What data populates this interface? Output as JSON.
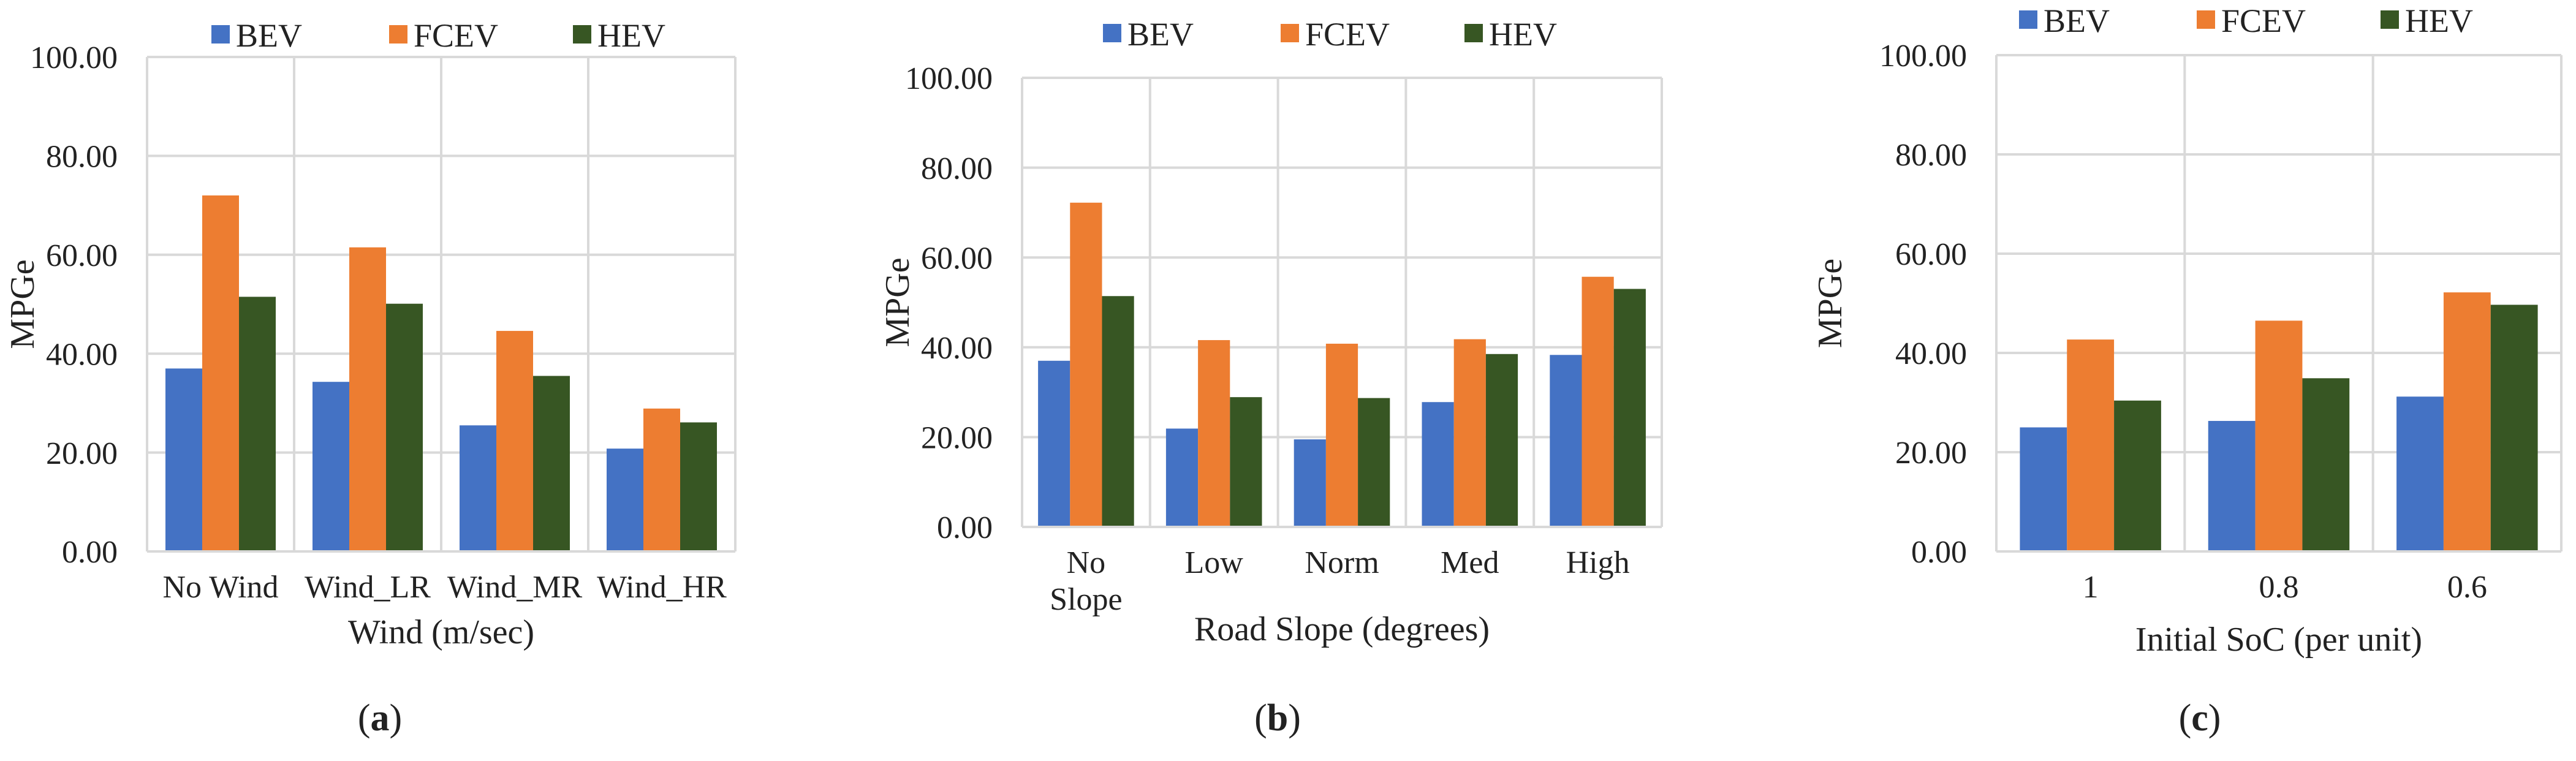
{
  "colors": {
    "BEV": "#4472C4",
    "FCEV": "#ED7D31",
    "HEV": "#375623"
  },
  "chart_data": [
    {
      "type": "bar",
      "panel_label": "(a)",
      "title": "",
      "xlabel": "Wind (m/sec)",
      "ylabel": "MPGe",
      "ylim": [
        0,
        100
      ],
      "yticks": [
        "0.00",
        "20.00",
        "40.00",
        "60.00",
        "80.00",
        "100.00"
      ],
      "grid": true,
      "legend": "top-center",
      "categories": [
        [
          "No Wind"
        ],
        [
          "Wind_LR"
        ],
        [
          "Wind_MR"
        ],
        [
          "Wind_HR"
        ]
      ],
      "series": [
        {
          "name": "BEV",
          "values": [
            37.0,
            34.3,
            25.5,
            20.8
          ]
        },
        {
          "name": "FCEV",
          "values": [
            72.0,
            61.5,
            44.6,
            28.9
          ]
        },
        {
          "name": "HEV",
          "values": [
            51.5,
            50.1,
            35.5,
            26.1
          ]
        }
      ]
    },
    {
      "type": "bar",
      "panel_label": "(b)",
      "title": "",
      "xlabel": "Road Slope (degrees)",
      "ylabel": "MPGe",
      "ylim": [
        0,
        100
      ],
      "yticks": [
        "0.00",
        "20.00",
        "40.00",
        "60.00",
        "80.00",
        "100.00"
      ],
      "grid": true,
      "legend": "top-center",
      "categories": [
        [
          "No",
          "Slope"
        ],
        [
          "Low"
        ],
        [
          "Norm"
        ],
        [
          "Med"
        ],
        [
          "High"
        ]
      ],
      "series": [
        {
          "name": "BEV",
          "values": [
            37.0,
            21.9,
            19.5,
            27.8,
            38.3
          ]
        },
        {
          "name": "FCEV",
          "values": [
            72.2,
            41.6,
            40.8,
            41.8,
            55.7
          ]
        },
        {
          "name": "HEV",
          "values": [
            51.4,
            28.9,
            28.7,
            38.5,
            53.0
          ]
        }
      ]
    },
    {
      "type": "bar",
      "panel_label": "(c)",
      "title": "",
      "xlabel": "Initial SoC (per unit)",
      "ylabel": "MPGe",
      "ylim": [
        0,
        100
      ],
      "yticks": [
        "0.00",
        "20.00",
        "40.00",
        "60.00",
        "80.00",
        "100.00"
      ],
      "grid": true,
      "legend": "top-center",
      "categories": [
        [
          "1"
        ],
        [
          "0.8"
        ],
        [
          "0.6"
        ]
      ],
      "series": [
        {
          "name": "BEV",
          "values": [
            25.0,
            26.3,
            31.2
          ]
        },
        {
          "name": "FCEV",
          "values": [
            42.7,
            46.5,
            52.2
          ]
        },
        {
          "name": "HEV",
          "values": [
            30.4,
            34.9,
            49.7
          ]
        }
      ]
    }
  ]
}
